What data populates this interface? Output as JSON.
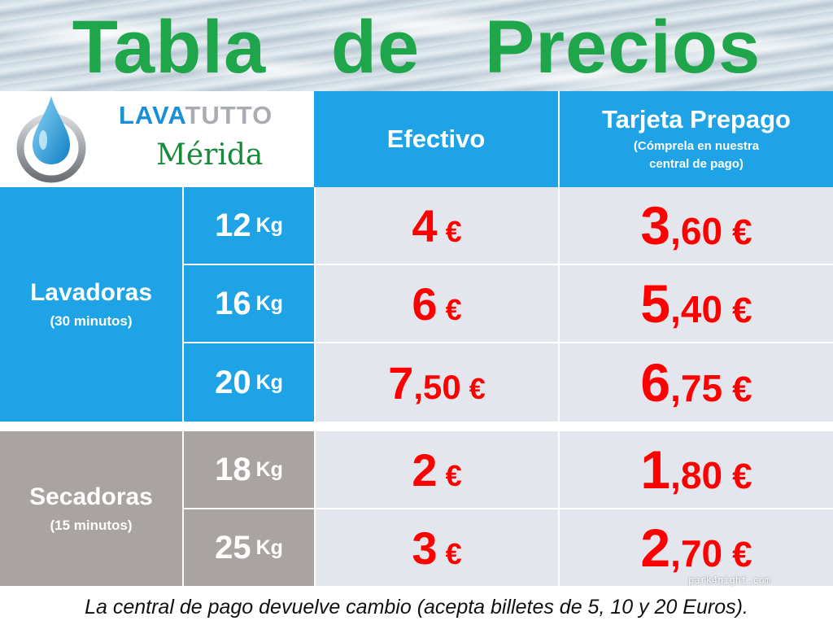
{
  "title": "Tabla   de   Precios",
  "brand": {
    "part1": "LAVA",
    "part2": "TUTTO",
    "city": "Mérida"
  },
  "columns": {
    "cash": {
      "label": "Efectivo"
    },
    "card": {
      "label": "Tarjeta Prepago",
      "note_line1": "(Cómprela en nuestra",
      "note_line2": "central de pago)"
    }
  },
  "groups": {
    "washers": {
      "label": "Lavadoras",
      "duration": "(30 minutos)"
    },
    "dryers": {
      "label": "Secadoras",
      "duration": "(15 minutos)"
    }
  },
  "rows": [
    {
      "kg": "12",
      "unit": "Kg",
      "cash_int": "4",
      "cash_dec": "",
      "card_int": "3",
      "card_dec": ",60",
      "currency": "€"
    },
    {
      "kg": "16",
      "unit": "Kg",
      "cash_int": "6",
      "cash_dec": "",
      "card_int": "5",
      "card_dec": ",40",
      "currency": "€"
    },
    {
      "kg": "20",
      "unit": "Kg",
      "cash_int": "7",
      "cash_dec": ",50",
      "card_int": "6",
      "card_dec": ",75",
      "currency": "€"
    },
    {
      "kg": "18",
      "unit": "Kg",
      "cash_int": "2",
      "cash_dec": "",
      "card_int": "1",
      "card_dec": ",80",
      "currency": "€"
    },
    {
      "kg": "25",
      "unit": "Kg",
      "cash_int": "3",
      "cash_dec": "",
      "card_int": "2",
      "card_dec": ",70",
      "currency": "€"
    }
  ],
  "footer": "La central de pago devuelve cambio (acepta billetes de 5, 10 y 20 Euros).",
  "watermark": "park4night.com",
  "colors": {
    "title_green": "#1fa64a",
    "header_blue": "#1da3e6",
    "dryer_grey": "#a9a4a1",
    "price_red": "#ff0000",
    "cell_bg": "#e4e6ee"
  },
  "icons": {
    "logo": "water-drop-icon"
  }
}
